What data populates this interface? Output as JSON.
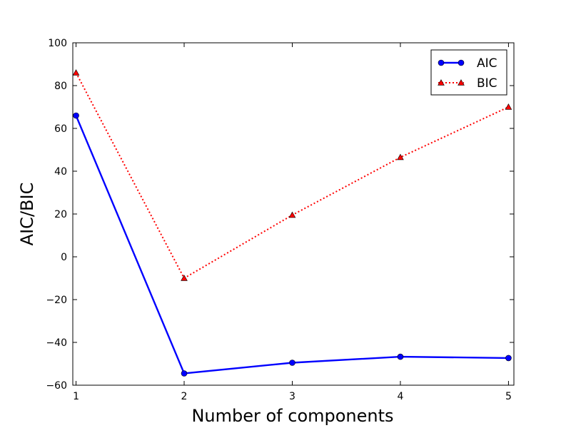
{
  "chart_data": {
    "type": "line",
    "title": "",
    "xlabel": "Number of components",
    "ylabel": "AIC/BIC",
    "x": [
      1,
      2,
      3,
      4,
      5
    ],
    "xticks": [
      "1",
      "2",
      "3",
      "4",
      "5"
    ],
    "yticks": [
      "−60",
      "−40",
      "−20",
      "0",
      "20",
      "40",
      "60",
      "80",
      "100"
    ],
    "xlim": [
      0.97,
      5.05
    ],
    "ylim": [
      -60,
      100
    ],
    "grid": false,
    "legend_position": "top-right",
    "series": [
      {
        "name": "AIC",
        "values": [
          66,
          -54.5,
          -49.5,
          -46.7,
          -47.3
        ],
        "color": "#0000ff",
        "line_style": "solid",
        "marker": "circle"
      },
      {
        "name": "BIC",
        "values": [
          86,
          -10,
          19.5,
          46.5,
          70
        ],
        "color": "#ff0000",
        "line_style": "dotted",
        "marker": "triangle"
      }
    ]
  }
}
